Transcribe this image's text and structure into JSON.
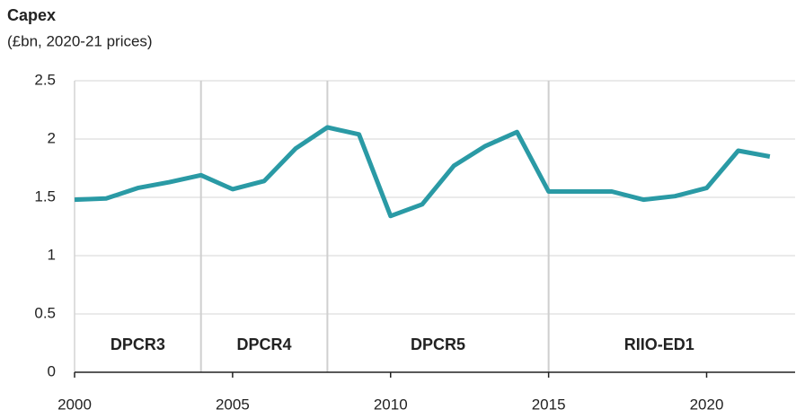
{
  "chart_data": {
    "type": "line",
    "title": "Capex",
    "subtitle": "(£bn, 2020-21 prices)",
    "x": [
      2000,
      2001,
      2002,
      2003,
      2004,
      2005,
      2006,
      2007,
      2008,
      2009,
      2010,
      2011,
      2012,
      2013,
      2014,
      2015,
      2016,
      2017,
      2018,
      2019,
      2020,
      2021,
      2022
    ],
    "series": [
      {
        "name": "Capex",
        "color": "#2a9aa5",
        "values": [
          1.48,
          1.49,
          1.58,
          1.63,
          1.69,
          1.57,
          1.64,
          1.92,
          2.1,
          2.04,
          1.34,
          1.44,
          1.77,
          1.94,
          2.06,
          1.55,
          1.55,
          1.55,
          1.48,
          1.51,
          1.58,
          1.9,
          1.85
        ]
      }
    ],
    "periods": [
      {
        "name": "DPCR3",
        "start": 2000,
        "end": 2004
      },
      {
        "name": "DPCR4",
        "start": 2004,
        "end": 2008
      },
      {
        "name": "DPCR5",
        "start": 2008,
        "end": 2015
      },
      {
        "name": "RIIO-ED1",
        "start": 2015,
        "end": 2022
      }
    ],
    "xlim": [
      2000,
      2022.8
    ],
    "xticks": [
      2000,
      2005,
      2010,
      2015,
      2020
    ],
    "ylim": [
      0,
      2.5
    ],
    "yticks": [
      0,
      0.5,
      1,
      1.5,
      2,
      2.5
    ],
    "grid": true
  }
}
